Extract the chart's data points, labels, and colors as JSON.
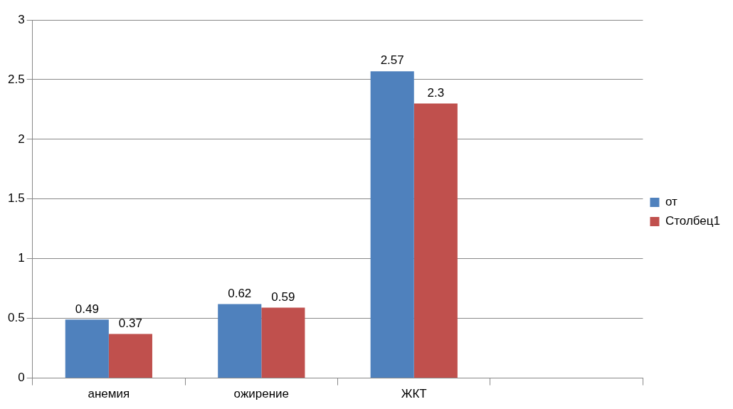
{
  "chart_data": {
    "type": "bar",
    "categories": [
      "анемия",
      "ожирение",
      "ЖКТ",
      null
    ],
    "series": [
      {
        "name": "от",
        "color": "#4f81bd",
        "values": [
          0.49,
          0.62,
          2.57,
          null
        ]
      },
      {
        "name": "Столбец1",
        "color": "#c0504d",
        "values": [
          0.37,
          0.59,
          2.3,
          null
        ]
      }
    ],
    "ylim": [
      0,
      3
    ],
    "yticks": [
      0,
      0.5,
      1,
      1.5,
      2,
      2.5,
      3
    ],
    "grid": "y",
    "legend": "right",
    "data_labels": true
  }
}
